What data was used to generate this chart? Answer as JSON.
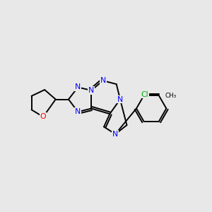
{
  "background_color": "#e8e8e8",
  "bond_color": "#000000",
  "N_color": "#0000ff",
  "O_color": "#ff0000",
  "Cl_color": "#00aa00",
  "C_color": "#000000",
  "figsize": [
    3.0,
    3.0
  ],
  "dpi": 100,
  "xlim": [
    0,
    10
  ],
  "ylim": [
    0,
    10
  ]
}
